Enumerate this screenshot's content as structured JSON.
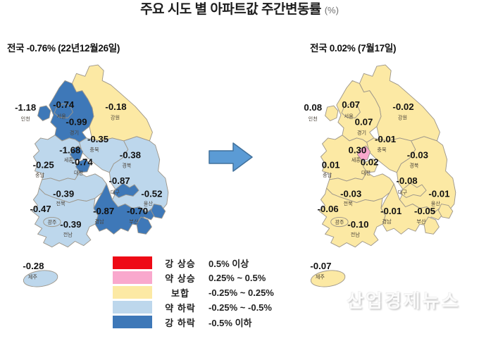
{
  "title": {
    "main": "주요 시도 별 아파트값 주간변동률",
    "unit": "(%)"
  },
  "watermark": "산업경제뉴스",
  "chart_data": {
    "type": "choropleth-map-pair",
    "title": "주요 시도 별 아파트값 주간변동률 (%)",
    "maps": [
      {
        "caption": "전국 -0.76% (22년12월26일)",
        "national": "-0.76",
        "key": "before"
      },
      {
        "caption": "전국 0.02% (7월17일)",
        "national": "0.02",
        "key": "after"
      }
    ],
    "regions": [
      {
        "id": "incheon",
        "name": "인천",
        "before": "-1.18",
        "after": "0.08"
      },
      {
        "id": "seoul",
        "name": "서울",
        "before": "-0.74",
        "after": "0.07"
      },
      {
        "id": "gyeonggi",
        "name": "경기",
        "before": "-0.99",
        "after": "0.07"
      },
      {
        "id": "gangwon",
        "name": "강원",
        "before": "-0.18",
        "after": "-0.02"
      },
      {
        "id": "chungbuk",
        "name": "충북",
        "before": "-0.35",
        "after": "-0.01"
      },
      {
        "id": "sejong",
        "name": "세종",
        "before": "-1.68",
        "after": "0.30"
      },
      {
        "id": "daejeon",
        "name": "대전",
        "before": "-0.74",
        "after": "0.02"
      },
      {
        "id": "chungnam",
        "name": "충남",
        "before": "-0.25",
        "after": "0.01"
      },
      {
        "id": "gyeongbuk",
        "name": "경북",
        "before": "-0.38",
        "after": "-0.03"
      },
      {
        "id": "jeonbuk",
        "name": "전북",
        "before": "-0.39",
        "after": "-0.03"
      },
      {
        "id": "daegu",
        "name": "대구",
        "before": "-0.87",
        "after": "-0.08"
      },
      {
        "id": "ulsan",
        "name": "울산",
        "before": "-0.52",
        "after": "-0.01"
      },
      {
        "id": "gwangju",
        "name": "광주",
        "before": "-0.47",
        "after": "-0.06"
      },
      {
        "id": "jeonnam",
        "name": "전남",
        "before": "-0.39",
        "after": "-0.10"
      },
      {
        "id": "gyeongnam",
        "name": "경남",
        "before": "-0.87",
        "after": "-0.01"
      },
      {
        "id": "busan",
        "name": "부산",
        "before": "-0.70",
        "after": "-0.05"
      },
      {
        "id": "jeju",
        "name": "제주",
        "before": "-0.28",
        "after": "-0.07"
      }
    ],
    "legend": [
      {
        "label": "강 상승",
        "range": "0.5% 이상",
        "color": "#ee0a16"
      },
      {
        "label": "약 상승",
        "range": "0.25% ~ 0.5%",
        "color": "#f9a8cd"
      },
      {
        "label": "보합",
        "range": "-0.25% ~ 0.25%",
        "color": "#fce9a4"
      },
      {
        "label": "약 하락",
        "range": "-0.25% ~ -0.5%",
        "color": "#bdd7ec"
      },
      {
        "label": "강 하락",
        "range": "-0.5% 이하",
        "color": "#3e78b8"
      }
    ],
    "thresholds": {
      "strong_up": 0.5,
      "weak_up": 0.25,
      "flat_low": -0.25,
      "weak_down_low": -0.5
    },
    "arrow_color": "#5b9bd5"
  }
}
